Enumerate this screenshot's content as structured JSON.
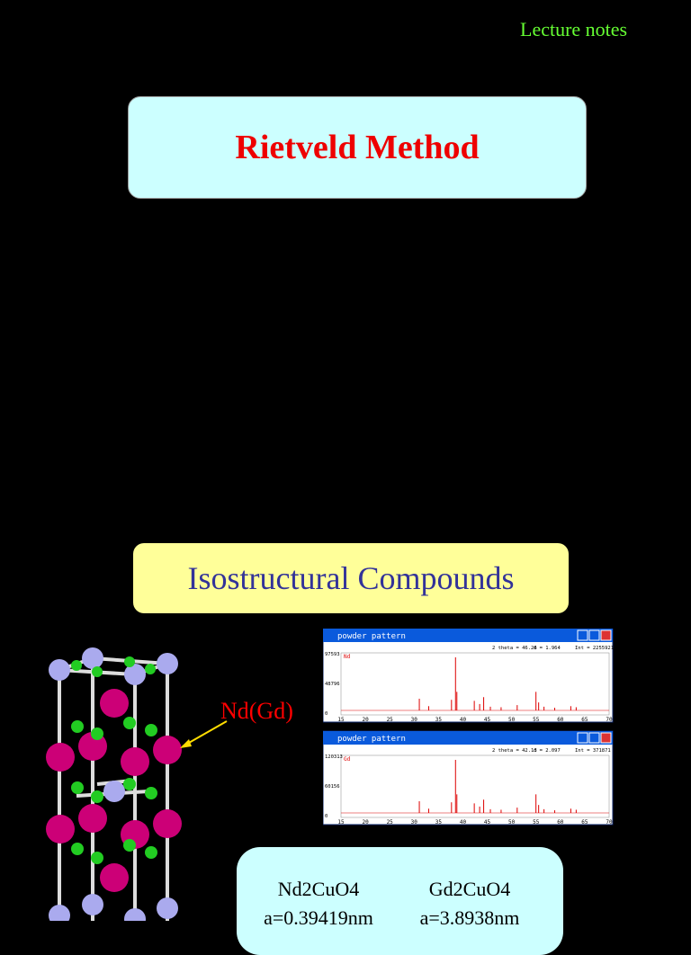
{
  "header": {
    "label": "Lecture notes"
  },
  "title": "Rietveld Method",
  "subtitle": "Isostructural Compounds",
  "figure": {
    "atom_label": "Nd(Gd)"
  },
  "patterns": [
    {
      "window_title": "powder pattern",
      "readout": [
        "2 theta = 46.26",
        "d = 1.964",
        "Int = 2255921"
      ],
      "legend": "Nd",
      "yticks": [
        "97593",
        "48796",
        "0"
      ],
      "xticks": [
        15,
        20,
        25,
        30,
        35,
        40,
        45,
        50,
        55,
        60,
        65,
        70
      ]
    },
    {
      "window_title": "powder pattern",
      "readout": [
        "2 theta = 42.13",
        "d = 2.097",
        "Int = 371871"
      ],
      "legend": "Gd",
      "yticks": [
        "120313",
        "60156",
        "0"
      ],
      "xticks": [
        15,
        20,
        25,
        30,
        35,
        40,
        45,
        50,
        55,
        60,
        65,
        70
      ]
    }
  ],
  "comparison": {
    "columns": [
      {
        "formula": "Nd2CuO4",
        "lattice": "a=0.39419nm"
      },
      {
        "formula": "Gd2CuO4",
        "lattice": "a=3.8938nm"
      }
    ]
  }
}
